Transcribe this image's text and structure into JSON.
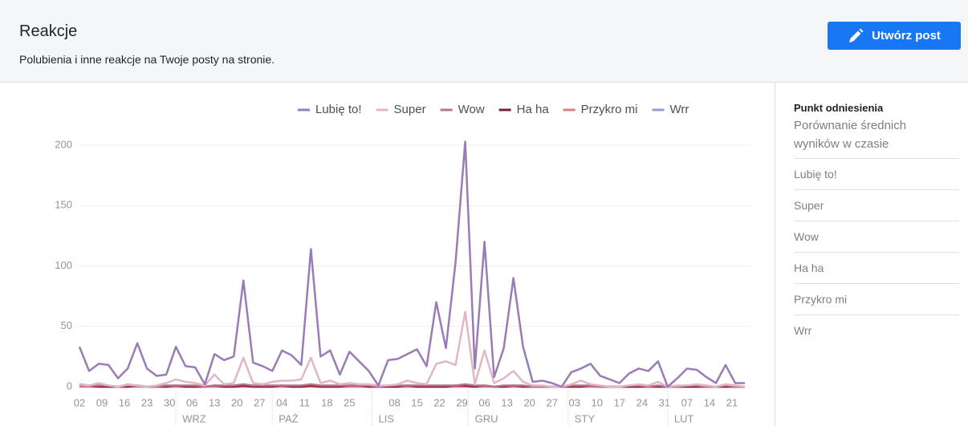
{
  "header": {
    "title": "Reakcje",
    "subtitle": "Polubienia i inne reakcje na Twoje posty na stronie.",
    "button": "Utwórz post"
  },
  "chart_data": {
    "type": "line",
    "legend": "top-right",
    "grid": true,
    "x": [
      0,
      3,
      6,
      9,
      12,
      15,
      18,
      21,
      24,
      27,
      30,
      33,
      36,
      39,
      42,
      45,
      48,
      51,
      54,
      57,
      60,
      63,
      66,
      69,
      72,
      75,
      78,
      81,
      84,
      87,
      90,
      93,
      96,
      99,
      102,
      105,
      108,
      111,
      114,
      117,
      120,
      123,
      126,
      129,
      132,
      135,
      138,
      141,
      144,
      147,
      150,
      153,
      156,
      159,
      162,
      165,
      168,
      171,
      174,
      177,
      180,
      183,
      186,
      189,
      192,
      195,
      198,
      201,
      204,
      207
    ],
    "xlim": [
      -1,
      207
    ],
    "xticks": [
      {
        "value": 0,
        "label": "02"
      },
      {
        "value": 7,
        "label": "09"
      },
      {
        "value": 14,
        "label": "16"
      },
      {
        "value": 21,
        "label": "23"
      },
      {
        "value": 28,
        "label": "30"
      },
      {
        "value": 35,
        "label": "06"
      },
      {
        "value": 42,
        "label": "13"
      },
      {
        "value": 49,
        "label": "20"
      },
      {
        "value": 56,
        "label": "27"
      },
      {
        "value": 63,
        "label": "04"
      },
      {
        "value": 70,
        "label": "11"
      },
      {
        "value": 77,
        "label": "18"
      },
      {
        "value": 84,
        "label": "25"
      },
      {
        "value": 98,
        "label": "08"
      },
      {
        "value": 105,
        "label": "15"
      },
      {
        "value": 112,
        "label": "22"
      },
      {
        "value": 119,
        "label": "29"
      },
      {
        "value": 126,
        "label": "06"
      },
      {
        "value": 133,
        "label": "13"
      },
      {
        "value": 140,
        "label": "20"
      },
      {
        "value": 147,
        "label": "27"
      },
      {
        "value": 154,
        "label": "03"
      },
      {
        "value": 161,
        "label": "10"
      },
      {
        "value": 168,
        "label": "17"
      },
      {
        "value": 175,
        "label": "24"
      },
      {
        "value": 182,
        "label": "31"
      },
      {
        "value": 189,
        "label": "07"
      },
      {
        "value": 196,
        "label": "14"
      },
      {
        "value": 203,
        "label": "21"
      }
    ],
    "month_ticks": [
      {
        "value": 30,
        "label": "WRZ"
      },
      {
        "value": 60,
        "label": "PAŹ"
      },
      {
        "value": 91,
        "label": "LIS"
      },
      {
        "value": 121,
        "label": "GRU"
      },
      {
        "value": 152,
        "label": "STY"
      },
      {
        "value": 183,
        "label": "LUT"
      }
    ],
    "ylim": [
      0,
      210
    ],
    "yticks": [
      0,
      50,
      100,
      150,
      200
    ],
    "series": [
      {
        "name": "Lubię to!",
        "color": "#9b7bb5",
        "values": [
          33,
          13,
          19,
          18,
          7,
          15,
          36,
          15,
          9,
          10,
          33,
          17,
          16,
          2,
          27,
          22,
          25,
          88,
          20,
          17,
          13,
          30,
          26,
          18,
          114,
          25,
          30,
          10,
          29,
          21,
          13,
          1,
          22,
          23,
          27,
          31,
          17,
          70,
          32,
          103,
          203,
          15,
          120,
          8,
          32,
          90,
          33,
          4,
          5,
          3,
          0,
          12,
          15,
          19,
          9,
          6,
          3,
          11,
          15,
          13,
          21,
          0,
          7,
          15,
          14,
          8,
          3,
          18,
          3,
          3
        ]
      },
      {
        "name": "Super",
        "color": "#e2b6c6",
        "values": [
          2,
          1,
          3,
          1,
          0,
          2,
          1,
          0,
          1,
          3,
          6,
          4,
          3,
          1,
          10,
          2,
          3,
          24,
          3,
          2,
          4,
          5,
          5,
          6,
          24,
          3,
          5,
          2,
          3,
          2,
          2,
          1,
          1,
          2,
          5,
          3,
          2,
          19,
          21,
          18,
          62,
          2,
          30,
          3,
          7,
          13,
          4,
          1,
          1,
          0,
          0,
          2,
          5,
          2,
          1,
          0,
          0,
          1,
          2,
          1,
          4,
          0,
          1,
          1,
          2,
          1,
          0,
          2,
          1,
          0
        ]
      },
      {
        "name": "Wow",
        "color": "#b9738e",
        "values": [
          1,
          1,
          1,
          1,
          0,
          1,
          1,
          0,
          0,
          1,
          1,
          1,
          1,
          0,
          1,
          1,
          1,
          2,
          1,
          1,
          1,
          1,
          1,
          1,
          2,
          1,
          1,
          1,
          1,
          1,
          1,
          0,
          1,
          1,
          1,
          1,
          1,
          1,
          1,
          1,
          2,
          1,
          1,
          0,
          1,
          1,
          1,
          0,
          0,
          0,
          0,
          1,
          1,
          1,
          0,
          0,
          0,
          1,
          1,
          0,
          1,
          0,
          0,
          1,
          1,
          0,
          0,
          1,
          0,
          0
        ]
      },
      {
        "name": "Ha ha",
        "color": "#7a1f2e",
        "values": [
          2,
          1,
          0,
          0,
          0,
          0,
          1,
          0,
          0,
          0,
          1,
          0,
          0,
          0,
          1,
          0,
          0,
          1,
          0,
          0,
          0,
          1,
          0,
          0,
          1,
          0,
          0,
          0,
          1,
          1,
          0,
          0,
          0,
          0,
          1,
          0,
          0,
          0,
          0,
          1,
          1,
          0,
          1,
          0,
          0,
          1,
          0,
          0,
          0,
          0,
          0,
          0,
          0,
          1,
          0,
          0,
          0,
          0,
          0,
          0,
          0,
          0,
          0,
          0,
          0,
          0,
          0,
          0,
          0,
          0
        ]
      },
      {
        "name": "Przykro mi",
        "color": "#e07b86",
        "values": [
          0,
          0,
          0,
          0,
          0,
          0,
          0,
          0,
          0,
          0,
          0,
          0,
          0,
          0,
          0,
          0,
          0,
          0,
          0,
          0,
          0,
          0,
          0,
          0,
          0,
          0,
          0,
          0,
          0,
          0,
          0,
          0,
          0,
          0,
          0,
          0,
          0,
          0,
          0,
          0,
          0,
          0,
          0,
          0,
          0,
          0,
          0,
          0,
          0,
          0,
          0,
          0,
          0,
          0,
          0,
          0,
          0,
          0,
          0,
          0,
          0,
          0,
          0,
          0,
          0,
          0,
          0,
          0,
          0,
          0
        ]
      },
      {
        "name": "Wrr",
        "color": "#8f9fd6",
        "values": [
          0,
          0,
          0,
          0,
          0,
          0,
          0,
          0,
          0,
          0,
          0,
          0,
          0,
          0,
          0,
          0,
          0,
          0,
          0,
          0,
          0,
          0,
          0,
          0,
          0,
          0,
          0,
          0,
          0,
          0,
          0,
          0,
          0,
          0,
          0,
          0,
          0,
          0,
          0,
          0,
          0,
          0,
          0,
          0,
          0,
          0,
          0,
          0,
          0,
          0,
          0,
          0,
          0,
          0,
          0,
          0,
          0,
          0,
          0,
          0,
          0,
          0,
          0,
          0,
          0,
          0,
          0,
          0,
          0,
          0
        ]
      }
    ]
  },
  "sidebar": {
    "heading": "Punkt odniesienia",
    "description": "Porównanie średnich wyników w czasie",
    "items": [
      "Lubię to!",
      "Super",
      "Wow",
      "Ha ha",
      "Przykro mi",
      "Wrr"
    ]
  }
}
